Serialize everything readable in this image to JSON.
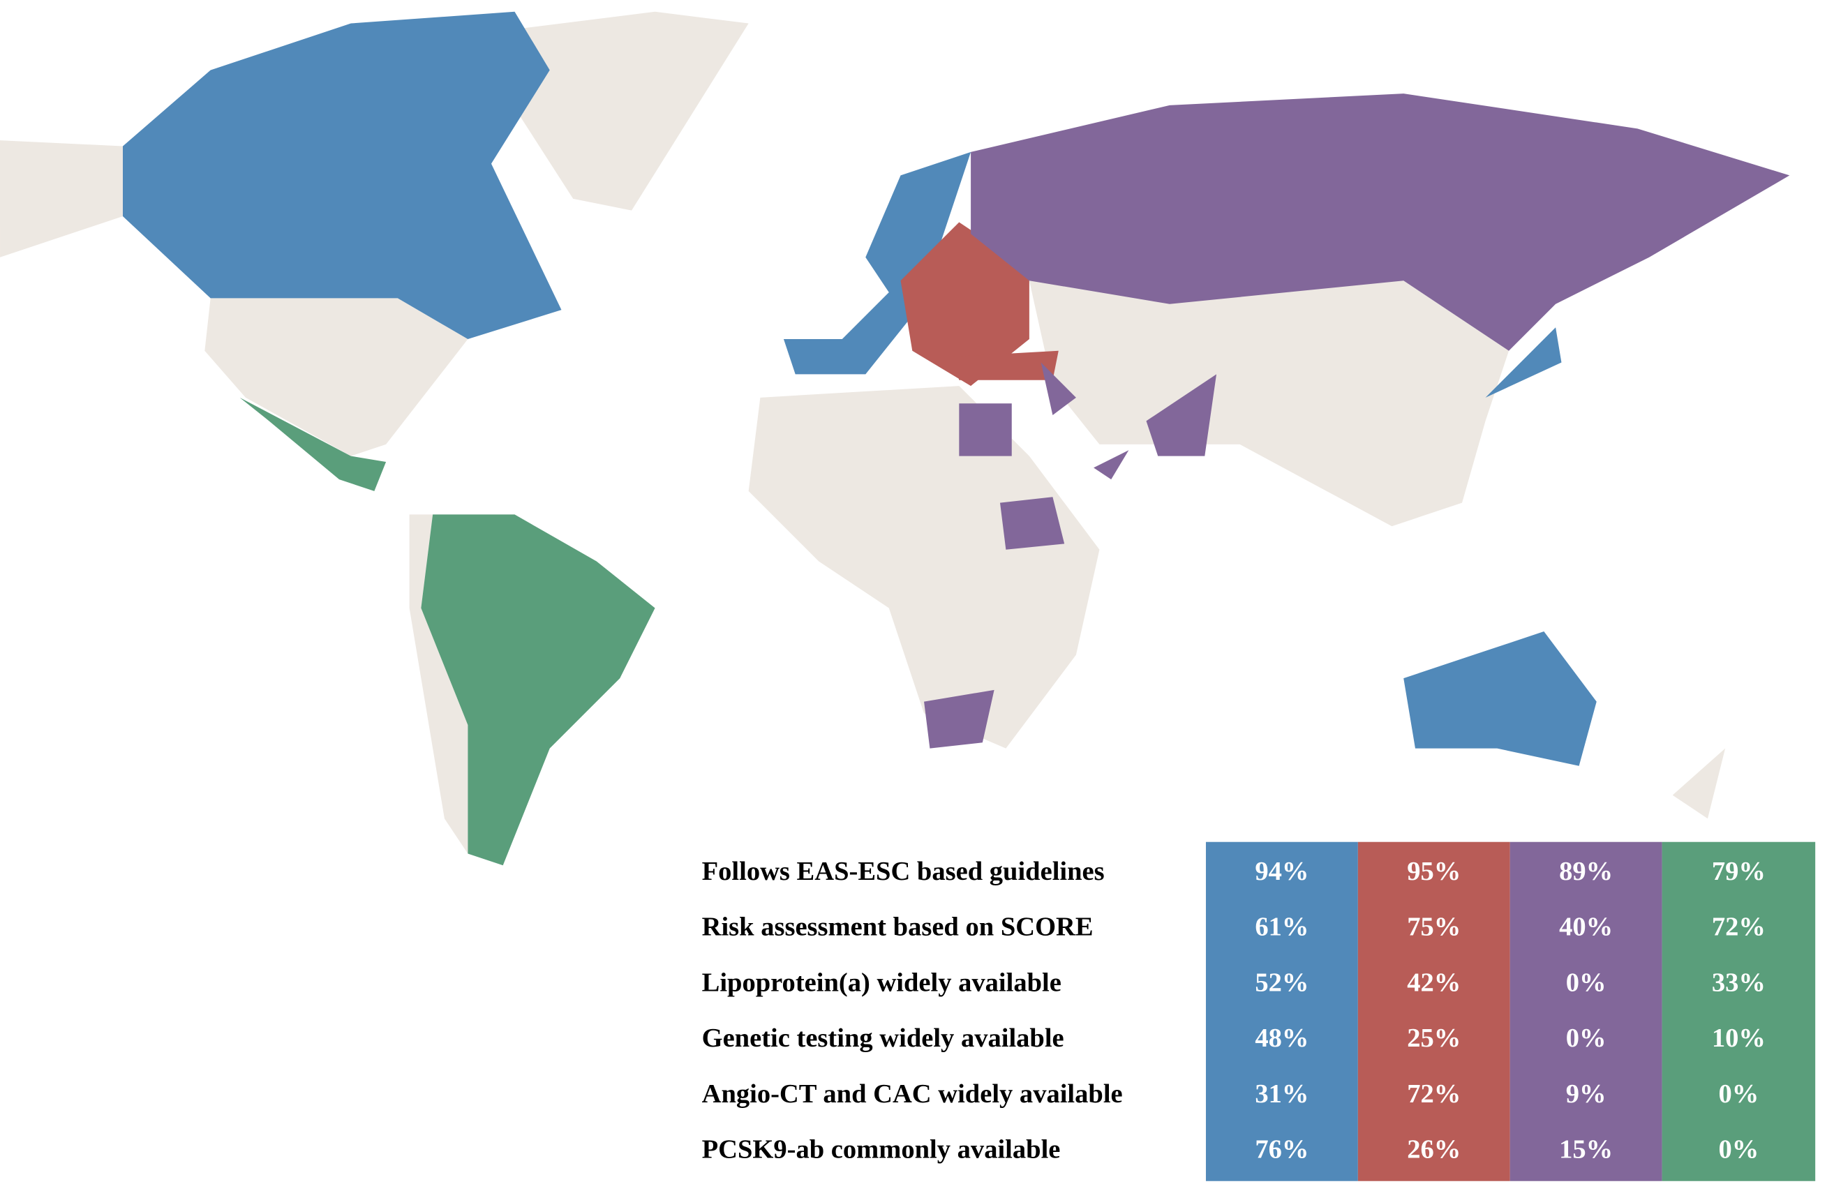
{
  "table": {
    "rows": [
      {
        "label": "Follows EAS-ESC based guidelines",
        "values": [
          "94%",
          "95%",
          "89%",
          "79%"
        ]
      },
      {
        "label": "Risk assessment based on SCORE",
        "values": [
          "61%",
          "75%",
          "40%",
          "72%"
        ]
      },
      {
        "label": "Lipoprotein(a) widely available",
        "values": [
          "52%",
          "42%",
          "0%",
          "33%"
        ]
      },
      {
        "label": "Genetic testing widely available",
        "values": [
          "48%",
          "25%",
          "0%",
          "10%"
        ]
      },
      {
        "label": "Angio-CT and CAC widely available",
        "values": [
          "31%",
          "72%",
          "9%",
          "0%"
        ]
      },
      {
        "label": "PCSK9-ab commonly available",
        "values": [
          "76%",
          "26%",
          "15%",
          "0%"
        ]
      }
    ]
  }
}
